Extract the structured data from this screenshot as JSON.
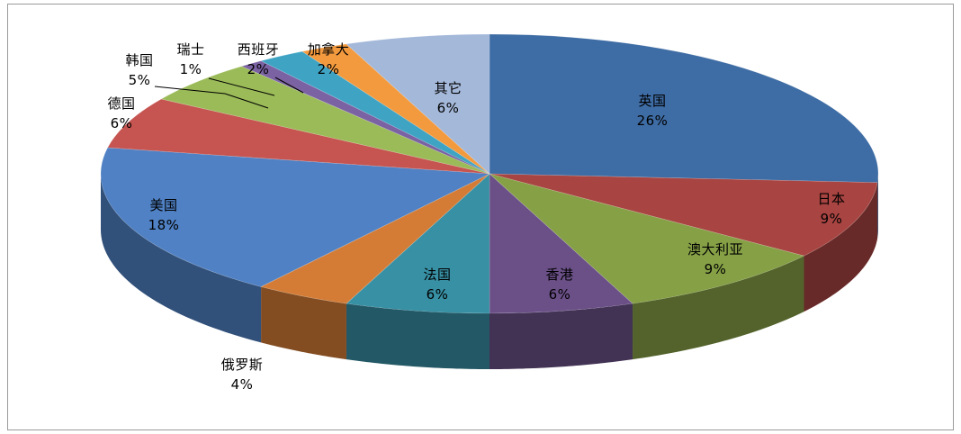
{
  "chart_data": {
    "type": "pie",
    "style": "3d",
    "title": "",
    "series": [
      {
        "values": [
          26,
          9,
          9,
          6,
          6,
          4,
          18,
          6,
          5,
          1,
          2,
          2,
          6
        ],
        "labels": [
          "英国",
          "日本",
          "澳大利亚",
          "香港",
          "法国",
          "俄罗斯",
          "美国",
          "德国",
          "韩国",
          "瑞士",
          "西班牙",
          "加拿大",
          "其它"
        ],
        "value_labels": [
          "26%",
          "9%",
          "9%",
          "6%",
          "6%",
          "4%",
          "18%",
          "6%",
          "5%",
          "1%",
          "2%",
          "2%",
          "6%"
        ],
        "colors": [
          "#3e6ca4",
          "#a84441",
          "#86a046",
          "#6b5088",
          "#3890a4",
          "#d47c36",
          "#4f81c4",
          "#c65450",
          "#9bbb59",
          "#7b62a3",
          "#3fa4c4",
          "#f39a3e",
          "#a4b8da"
        ]
      }
    ],
    "legend": "none",
    "data_labels": "category and percent",
    "start_angle": "12 o'clock",
    "direction": "clockwise"
  }
}
